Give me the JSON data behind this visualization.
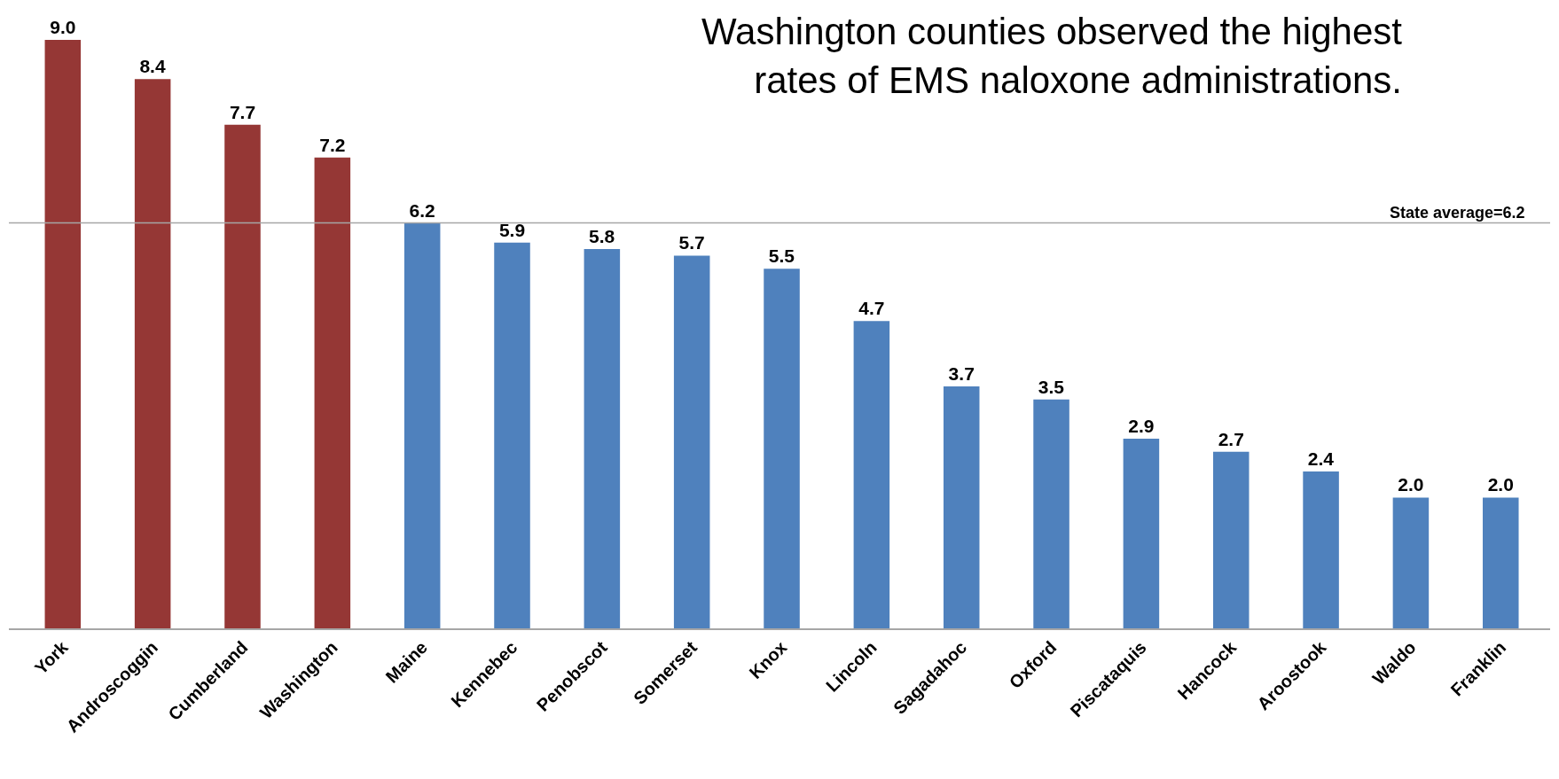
{
  "chart_data": {
    "type": "bar",
    "title": "Washington counties observed the highest\nrates of EMS naloxone administrations.",
    "categories": [
      "York",
      "Androscoggin",
      "Cumberland",
      "Washington",
      "Maine",
      "Kennebec",
      "Penobscot",
      "Somerset",
      "Knox",
      "Lincoln",
      "Sagadahoc",
      "Oxford",
      "Piscataquis",
      "Hancock",
      "Aroostook",
      "Waldo",
      "Franklin"
    ],
    "values": [
      9.0,
      8.4,
      7.7,
      7.2,
      6.2,
      5.9,
      5.8,
      5.7,
      5.5,
      4.7,
      3.7,
      3.5,
      2.9,
      2.7,
      2.4,
      2.0,
      2.0
    ],
    "value_labels": [
      "9.0",
      "8.4",
      "7.7",
      "7.2",
      "6.2",
      "5.9",
      "5.8",
      "5.7",
      "5.5",
      "4.7",
      "3.7",
      "3.5",
      "2.9",
      "2.7",
      "2.4",
      "2.0",
      "2.0"
    ],
    "colors": [
      "#953735",
      "#953735",
      "#953735",
      "#953735",
      "#4f81bd",
      "#4f81bd",
      "#4f81bd",
      "#4f81bd",
      "#4f81bd",
      "#4f81bd",
      "#4f81bd",
      "#4f81bd",
      "#4f81bd",
      "#4f81bd",
      "#4f81bd",
      "#4f81bd",
      "#4f81bd"
    ],
    "ref_lines": [
      {
        "axis": "y",
        "value": 6.2,
        "label": "State average=6.2",
        "color": "#a6a6a6"
      }
    ],
    "tick_labels": "x"
  }
}
